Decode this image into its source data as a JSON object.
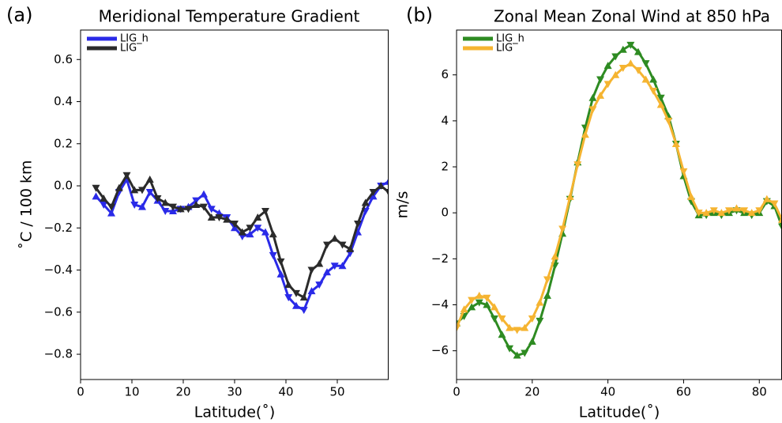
{
  "chart_data": [
    {
      "type": "line",
      "label": "(a)",
      "title": "Meridional Temperature Gradient",
      "x_label": "Latitude(˚)",
      "y_label": "˚C / 100 km",
      "legend": "upper left",
      "xlim": [
        0,
        60
      ],
      "ylim": [
        -0.92,
        0.74
      ],
      "xticks": [
        0,
        10,
        20,
        30,
        40,
        50
      ],
      "yticks": [
        {
          "value": -0.8,
          "label": "−0.8"
        },
        {
          "value": -0.6,
          "label": "−0.6"
        },
        {
          "value": -0.4,
          "label": "−0.4"
        },
        {
          "value": -0.2,
          "label": "−0.2"
        },
        {
          "value": 0,
          "label": "0.0"
        },
        0.2,
        0.4,
        0.6
      ],
      "x": [
        3,
        4.5,
        6,
        7.5,
        9,
        10.5,
        12,
        13.5,
        15,
        16.5,
        18,
        19.5,
        21,
        22.5,
        24,
        25.5,
        27,
        28.5,
        30,
        31.5,
        33,
        34.5,
        36,
        37.5,
        39,
        40.5,
        42,
        43.5,
        45,
        46.5,
        48,
        49.5,
        51,
        52.5,
        54,
        55.5,
        57,
        58.5,
        60
      ],
      "series": [
        {
          "name": "LIG_h",
          "color": "#2a2ae8",
          "values": [
            -0.05,
            -0.09,
            -0.13,
            -0.03,
            0.03,
            -0.09,
            -0.1,
            -0.03,
            -0.07,
            -0.12,
            -0.12,
            -0.11,
            -0.1,
            -0.07,
            -0.04,
            -0.11,
            -0.13,
            -0.15,
            -0.2,
            -0.24,
            -0.23,
            -0.2,
            -0.22,
            -0.33,
            -0.42,
            -0.53,
            -0.57,
            -0.59,
            -0.5,
            -0.47,
            -0.41,
            -0.38,
            -0.38,
            -0.32,
            -0.22,
            -0.12,
            -0.05,
            0.0,
            0.02
          ]
        },
        {
          "name": "LIG",
          "color": "#2b2b2b",
          "values": [
            -0.01,
            -0.06,
            -0.1,
            -0.01,
            0.05,
            -0.02,
            -0.02,
            0.03,
            -0.06,
            -0.08,
            -0.1,
            -0.11,
            -0.11,
            -0.09,
            -0.1,
            -0.15,
            -0.15,
            -0.16,
            -0.18,
            -0.22,
            -0.2,
            -0.15,
            -0.12,
            -0.23,
            -0.36,
            -0.47,
            -0.51,
            -0.53,
            -0.4,
            -0.37,
            -0.28,
            -0.25,
            -0.28,
            -0.3,
            -0.18,
            -0.08,
            -0.03,
            0.0,
            -0.03
          ]
        }
      ]
    },
    {
      "type": "line",
      "label": "(b)",
      "title": "Zonal Mean Zonal Wind at 850 hPa",
      "x_label": "Latitude(˚)",
      "y_label": "m/s",
      "legend": "upper left",
      "xlim": [
        0,
        86
      ],
      "ylim": [
        -7.25,
        7.95
      ],
      "xticks": [
        0,
        20,
        40,
        60,
        80
      ],
      "yticks": [
        {
          "value": -6,
          "label": "−6"
        },
        {
          "value": -4,
          "label": "−4"
        },
        {
          "value": -2,
          "label": "−2"
        },
        0,
        2,
        4,
        6
      ],
      "x": [
        0,
        2,
        4,
        6,
        8,
        10,
        12,
        14,
        16,
        18,
        20,
        22,
        24,
        26,
        28,
        30,
        32,
        34,
        36,
        38,
        40,
        42,
        44,
        46,
        48,
        50,
        52,
        54,
        56,
        58,
        60,
        62,
        64,
        66,
        68,
        70,
        72,
        74,
        76,
        78,
        80,
        82,
        84,
        86
      ],
      "series": [
        {
          "name": "LIG_h",
          "color": "#2e8b22",
          "values": [
            -4.8,
            -4.5,
            -4.1,
            -3.9,
            -4.0,
            -4.6,
            -5.3,
            -5.9,
            -6.2,
            -6.1,
            -5.6,
            -4.7,
            -3.6,
            -2.3,
            -0.9,
            0.6,
            2.2,
            3.7,
            5.0,
            5.8,
            6.4,
            6.8,
            7.1,
            7.3,
            7.0,
            6.5,
            5.8,
            5.0,
            4.2,
            3.0,
            1.6,
            0.5,
            -0.1,
            -0.1,
            0.0,
            -0.1,
            0.0,
            0.1,
            0.0,
            -0.1,
            0.0,
            0.5,
            0.3,
            -0.6
          ]
        },
        {
          "name": "LIG",
          "color": "#f5b431",
          "values": [
            -5.0,
            -4.2,
            -3.8,
            -3.6,
            -3.7,
            -4.1,
            -4.6,
            -5.0,
            -5.1,
            -5.0,
            -4.6,
            -3.9,
            -2.9,
            -1.9,
            -0.7,
            0.7,
            2.1,
            3.4,
            4.5,
            5.1,
            5.6,
            6.0,
            6.3,
            6.5,
            6.2,
            5.8,
            5.3,
            4.7,
            4.0,
            3.0,
            1.8,
            0.7,
            0.0,
            0.0,
            0.1,
            0.0,
            0.1,
            0.2,
            0.1,
            0.0,
            0.1,
            0.6,
            0.4,
            -0.3
          ]
        }
      ]
    }
  ]
}
